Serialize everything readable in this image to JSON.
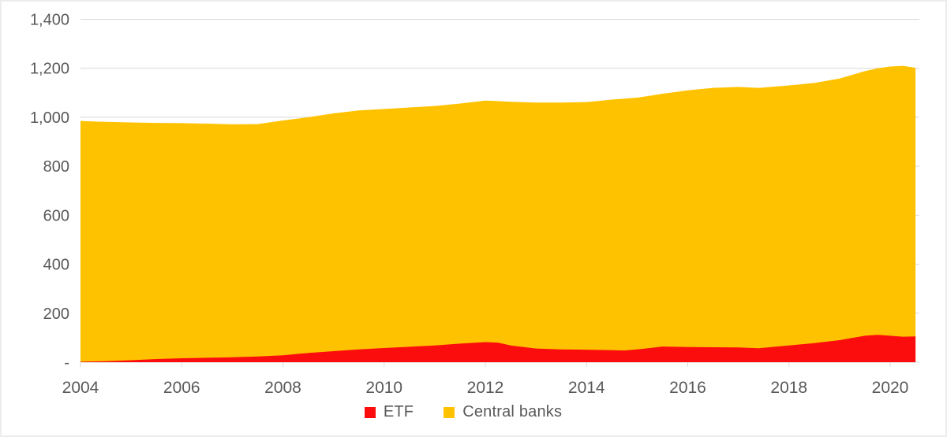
{
  "chart_data": {
    "type": "area",
    "stacked": true,
    "title": "",
    "xlabel": "",
    "ylabel": "",
    "ylim": [
      0,
      1400
    ],
    "grid": "horizontal",
    "legend_position": "bottom-center",
    "x": [
      2004,
      2004.5,
      2005,
      2005.5,
      2006,
      2006.5,
      2007,
      2007.5,
      2008,
      2008.5,
      2009,
      2009.5,
      2010,
      2010.5,
      2011,
      2011.5,
      2012,
      2012.25,
      2012.5,
      2013,
      2013.5,
      2014,
      2014.5,
      2014.75,
      2015,
      2015.25,
      2015.5,
      2016,
      2016.5,
      2017,
      2017.4,
      2018,
      2018.5,
      2019,
      2019.5,
      2019.75,
      2020,
      2020.25,
      2020.5
    ],
    "series": [
      {
        "name": "ETF",
        "color": "#fc0d0d",
        "values": [
          2,
          4,
          8,
          13,
          16,
          18,
          20,
          23,
          28,
          38,
          45,
          52,
          58,
          63,
          68,
          76,
          82,
          80,
          68,
          56,
          52,
          51,
          49,
          48,
          52,
          58,
          64,
          62,
          61,
          60,
          57,
          68,
          78,
          90,
          108,
          112,
          108,
          104,
          105
        ]
      },
      {
        "name": "Central banks",
        "color": "#ffc200",
        "values": [
          983,
          977,
          971,
          964,
          960,
          956,
          951,
          949,
          959,
          962,
          971,
          976,
          976,
          977,
          978,
          980,
          986,
          986,
          995,
          1004,
          1008,
          1011,
          1023,
          1028,
          1028,
          1030,
          1032,
          1048,
          1059,
          1064,
          1063,
          1062,
          1062,
          1068,
          1080,
          1088,
          1099,
          1106,
          1097
        ]
      }
    ],
    "y_ticks": [
      {
        "value": 0,
        "label": "-"
      },
      {
        "value": 200,
        "label": "200"
      },
      {
        "value": 400,
        "label": "400"
      },
      {
        "value": 600,
        "label": "600"
      },
      {
        "value": 800,
        "label": "800"
      },
      {
        "value": 1000,
        "label": "1,000"
      },
      {
        "value": 1200,
        "label": "1,200"
      },
      {
        "value": 1400,
        "label": "1,400"
      }
    ],
    "x_ticks": [
      {
        "value": 2004,
        "label": "2004"
      },
      {
        "value": 2006,
        "label": "2006"
      },
      {
        "value": 2008,
        "label": "2008"
      },
      {
        "value": 2010,
        "label": "2010"
      },
      {
        "value": 2012,
        "label": "2012"
      },
      {
        "value": 2014,
        "label": "2014"
      },
      {
        "value": 2016,
        "label": "2016"
      },
      {
        "value": 2018,
        "label": "2018"
      },
      {
        "value": 2020,
        "label": "2020"
      }
    ]
  },
  "legend": {
    "items": [
      {
        "label": "ETF",
        "color": "#fc0d0d"
      },
      {
        "label": "Central banks",
        "color": "#ffc200"
      }
    ]
  },
  "colors": {
    "etf": "#fc0d0d",
    "central_banks": "#ffc200",
    "grid": "#d9d9d9",
    "text": "#595959",
    "border": "#ececec"
  }
}
